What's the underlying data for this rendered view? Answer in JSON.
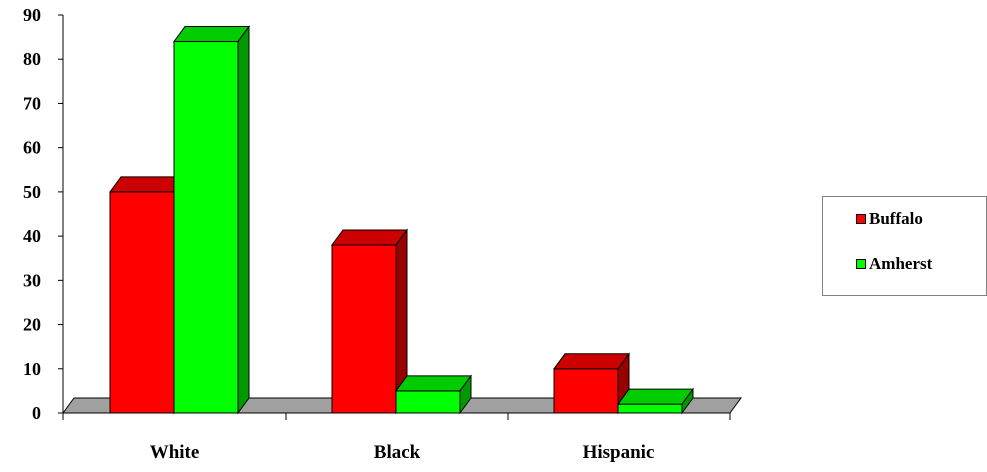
{
  "chart_data": {
    "type": "bar",
    "categories": [
      "White",
      "Black",
      "Hispanic"
    ],
    "series": [
      {
        "name": "Buffalo",
        "values": [
          50,
          38,
          10
        ],
        "color": "#ff0000",
        "top_color": "#cc0000",
        "side_color": "#990000"
      },
      {
        "name": "Amherst",
        "values": [
          84,
          5,
          2
        ],
        "color": "#00ff00",
        "top_color": "#00cc00",
        "side_color": "#009900"
      }
    ],
    "y_ticks": [
      "0",
      "10",
      "20",
      "30",
      "40",
      "50",
      "60",
      "70",
      "80",
      "90"
    ],
    "ylim": [
      0,
      90
    ],
    "legend_position": "right",
    "floor_color": "#a0a0a0"
  }
}
